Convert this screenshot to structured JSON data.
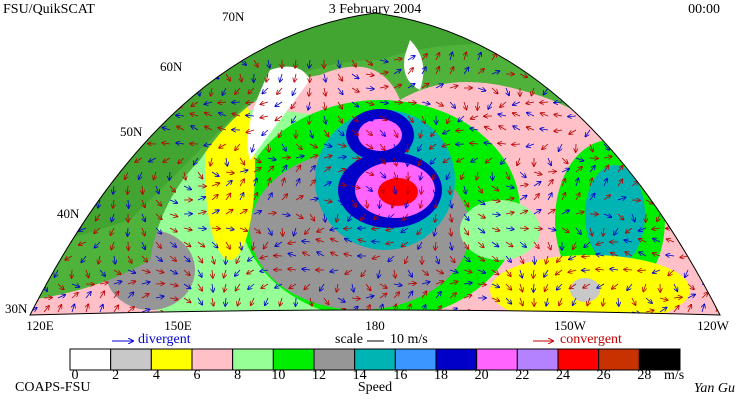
{
  "header": {
    "left": "FSU/QuikSCAT",
    "center": "3 February 2004",
    "right": "00:00"
  },
  "map": {
    "lat_labels": [
      "70N",
      "60N",
      "50N",
      "40N",
      "30N"
    ],
    "lon_labels": [
      "120E",
      "150E",
      "180",
      "150W",
      "120W"
    ]
  },
  "legend": {
    "divergent": "divergent",
    "scale": "scale",
    "scale_value": "10 m/s",
    "convergent": "convergent"
  },
  "colorbar": {
    "title": "Speed",
    "units": "m/s",
    "ticks": [
      0,
      2,
      4,
      6,
      8,
      10,
      12,
      14,
      16,
      18,
      20,
      22,
      24,
      26,
      28
    ],
    "colors": [
      "#ffffff",
      "#c8c8c8",
      "#ffff00",
      "#ffc0c8",
      "#96ff96",
      "#00ee00",
      "#969696",
      "#00b4b4",
      "#3c96ff",
      "#0000c8",
      "#ff64ff",
      "#b482ff",
      "#ff0000",
      "#c83200",
      "#000000"
    ]
  },
  "footer": {
    "left": "COAPS-FSU",
    "right": "Yan Gu"
  }
}
